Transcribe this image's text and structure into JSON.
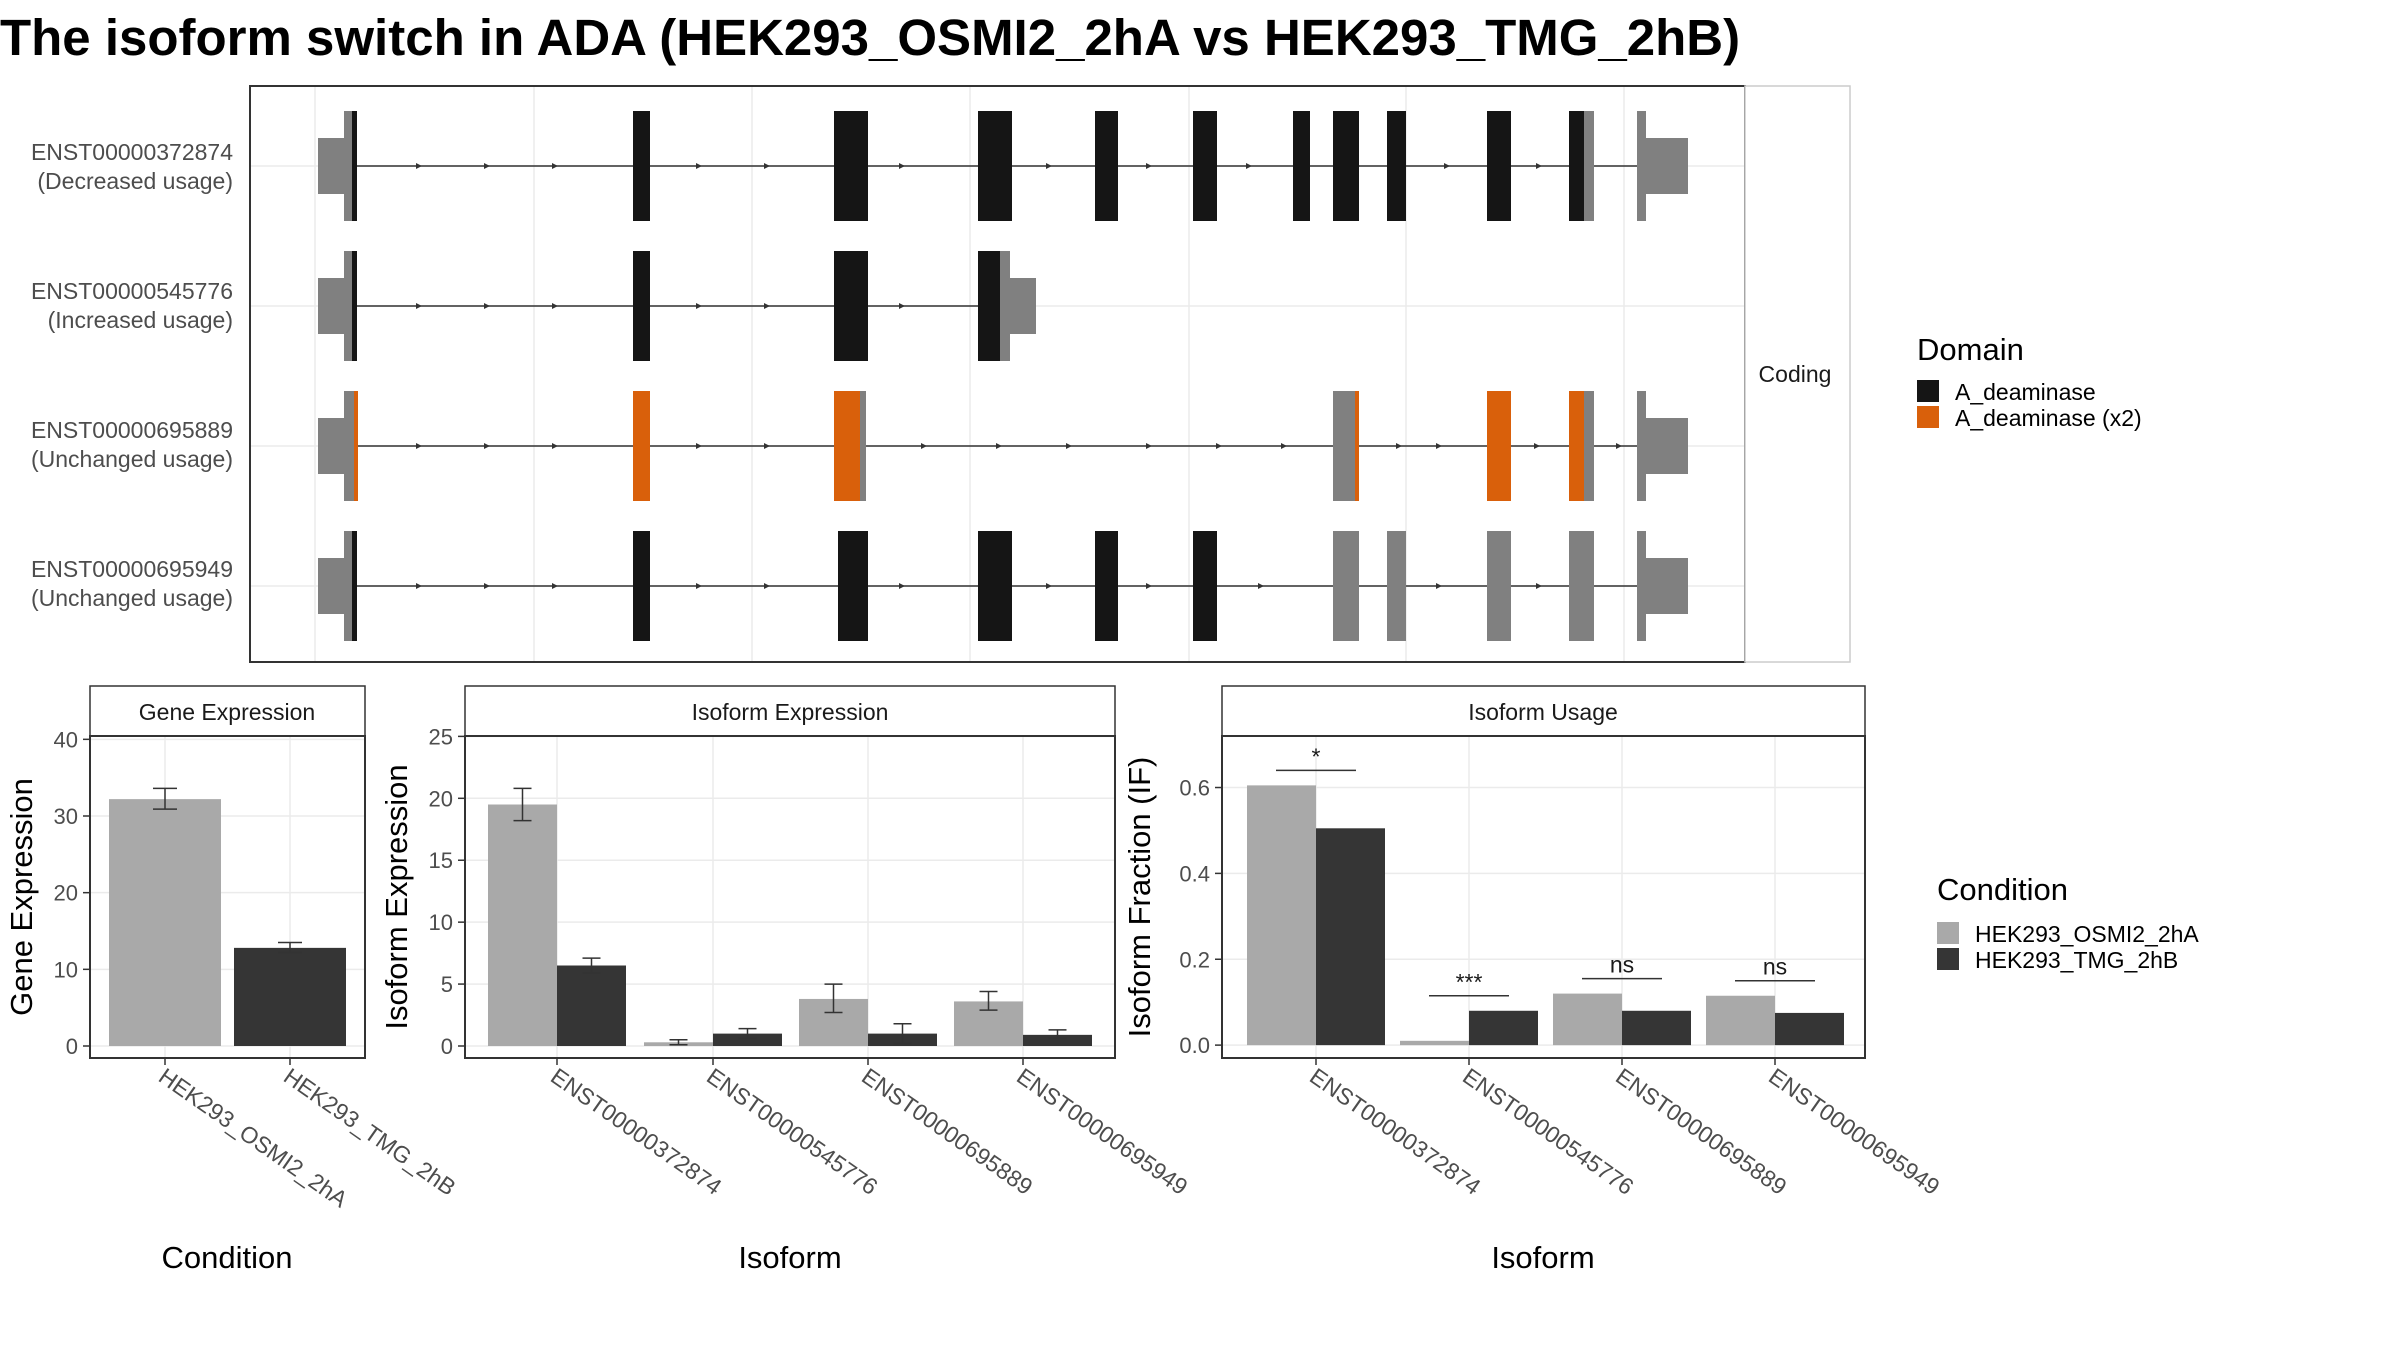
{
  "title": "The isoform switch in ADA (HEK293_OSMI2_2hA vs HEK293_TMG_2hB)",
  "chart_data": [
    {
      "type": "gene-structure",
      "facet_label": "Coding",
      "transcripts": [
        {
          "id": "ENST00000372874",
          "usage": "(Decreased usage)"
        },
        {
          "id": "ENST00000545776",
          "usage": "(Increased usage)"
        },
        {
          "id": "ENST00000695889",
          "usage": "(Unchanged usage)"
        },
        {
          "id": "ENST00000695949",
          "usage": "(Unchanged usage)"
        }
      ],
      "legend": {
        "title": "Domain",
        "entries": [
          {
            "label": "A_deaminase",
            "color": "#151515"
          },
          {
            "label": "A_deaminase (x2)",
            "color": "#D9600B"
          }
        ]
      },
      "colors": {
        "utr": "#808080",
        "intron": "#333333",
        "frame": "#333333"
      }
    },
    {
      "type": "bar",
      "title": "Gene Expression",
      "xlabel": "Condition",
      "ylabel": "Gene Expression",
      "categories": [
        "HEK293_OSMI2_2hA",
        "HEK293_TMG_2hB"
      ],
      "values": [
        32.2,
        12.8
      ],
      "error_low": [
        30.9,
        12.2
      ],
      "error_high": [
        33.6,
        13.5
      ],
      "ylim": [
        0,
        42
      ],
      "yticks": [
        0,
        10,
        20,
        30,
        40
      ],
      "colors": [
        "#A9A9A9",
        "#353535"
      ]
    },
    {
      "type": "bar",
      "title": "Isoform Expression",
      "xlabel": "Isoform",
      "ylabel": "Isoform Expression",
      "categories": [
        "ENST00000372874",
        "ENST00000545776",
        "ENST00000695889",
        "ENST00000695949"
      ],
      "series": [
        {
          "name": "HEK293_OSMI2_2hA",
          "values": [
            19.5,
            0.3,
            3.8,
            3.6
          ],
          "err_low": [
            18.2,
            0.1,
            2.7,
            2.9
          ],
          "err_high": [
            20.8,
            0.5,
            5.0,
            4.4
          ]
        },
        {
          "name": "HEK293_TMG_2hB",
          "values": [
            6.5,
            1.0,
            1.0,
            0.9
          ],
          "err_low": [
            5.9,
            0.6,
            0.2,
            0.6
          ],
          "err_high": [
            7.1,
            1.4,
            1.8,
            1.3
          ]
        }
      ],
      "ylim": [
        0,
        26
      ],
      "yticks": [
        0,
        5,
        10,
        15,
        20,
        25
      ]
    },
    {
      "type": "bar",
      "title": "Isoform Usage",
      "xlabel": "Isoform",
      "ylabel": "Isoform Fraction (IF)",
      "categories": [
        "ENST00000372874",
        "ENST00000545776",
        "ENST00000695889",
        "ENST00000695949"
      ],
      "series": [
        {
          "name": "HEK293_OSMI2_2hA",
          "values": [
            0.605,
            0.01,
            0.12,
            0.115
          ]
        },
        {
          "name": "HEK293_TMG_2hB",
          "values": [
            0.505,
            0.08,
            0.08,
            0.075
          ]
        }
      ],
      "significance": [
        "*",
        "***",
        "ns",
        "ns"
      ],
      "ylim": [
        -0.03,
        0.72
      ],
      "yticks": [
        0.0,
        0.2,
        0.4,
        0.6
      ],
      "ytick_labels": [
        "0.0",
        "0.2",
        "0.4",
        "0.6"
      ]
    }
  ],
  "condition_legend": {
    "title": "Condition",
    "entries": [
      {
        "label": "HEK293_OSMI2_2hA",
        "color": "#A9A9A9"
      },
      {
        "label": "HEK293_TMG_2hB",
        "color": "#353535"
      }
    ]
  }
}
